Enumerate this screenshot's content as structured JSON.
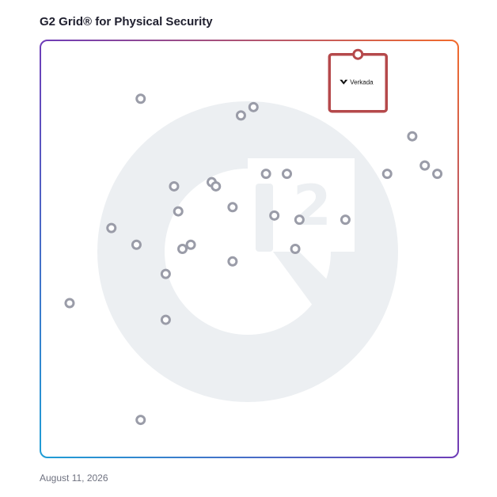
{
  "title": "G2 Grid® for Physical Security",
  "date": "August 11, 2026",
  "colors": {
    "frame_gradient": [
      "#1f9ed6",
      "#6e3db8",
      "#f26b2c"
    ],
    "marker": "#9a9ca8",
    "featured_box": "#b5494b",
    "watermark": "#eceff2"
  },
  "chart_data": {
    "type": "scatter",
    "title": "G2 Grid® for Physical Security",
    "xlabel": "",
    "ylabel": "",
    "xlim": [
      0,
      100
    ],
    "ylim": [
      0,
      100
    ],
    "quadrant_split": {
      "x": 50,
      "y": 50
    },
    "grid": false,
    "points": [
      {
        "x": 24,
        "y": 86
      },
      {
        "x": 51,
        "y": 84
      },
      {
        "x": 48,
        "y": 82
      },
      {
        "x": 89,
        "y": 77
      },
      {
        "x": 92,
        "y": 70
      },
      {
        "x": 95,
        "y": 68
      },
      {
        "x": 83,
        "y": 68
      },
      {
        "x": 54,
        "y": 68
      },
      {
        "x": 59,
        "y": 68
      },
      {
        "x": 32,
        "y": 65
      },
      {
        "x": 41,
        "y": 66
      },
      {
        "x": 42,
        "y": 65
      },
      {
        "x": 46,
        "y": 60
      },
      {
        "x": 33,
        "y": 59
      },
      {
        "x": 56,
        "y": 58
      },
      {
        "x": 62,
        "y": 57
      },
      {
        "x": 73,
        "y": 57
      },
      {
        "x": 17,
        "y": 55
      },
      {
        "x": 23,
        "y": 51
      },
      {
        "x": 36,
        "y": 51
      },
      {
        "x": 34,
        "y": 50
      },
      {
        "x": 61,
        "y": 50
      },
      {
        "x": 46,
        "y": 47
      },
      {
        "x": 30,
        "y": 44
      },
      {
        "x": 7,
        "y": 37
      },
      {
        "x": 30,
        "y": 33
      },
      {
        "x": 24,
        "y": 9
      }
    ],
    "featured": {
      "label": "Verkada",
      "x": 76,
      "y": 90
    }
  }
}
